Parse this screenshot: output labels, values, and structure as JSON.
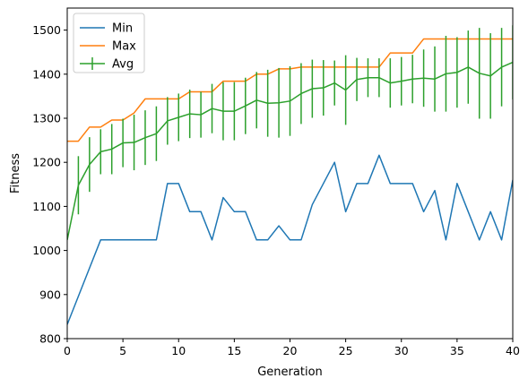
{
  "chart_data": {
    "type": "line",
    "title": "",
    "xlabel": "Generation",
    "ylabel": "Fitness",
    "xlim": [
      0,
      40
    ],
    "ylim": [
      800,
      1550
    ],
    "xticks": [
      0,
      5,
      10,
      15,
      20,
      25,
      30,
      35,
      40
    ],
    "yticks": [
      800,
      900,
      1000,
      1100,
      1200,
      1300,
      1400,
      1500
    ],
    "grid": false,
    "legend_position": "upper-left",
    "x": [
      0,
      1,
      2,
      3,
      4,
      5,
      6,
      7,
      8,
      9,
      10,
      11,
      12,
      13,
      14,
      15,
      16,
      17,
      18,
      19,
      20,
      21,
      22,
      23,
      24,
      25,
      26,
      27,
      28,
      29,
      30,
      31,
      32,
      33,
      34,
      35,
      36,
      37,
      38,
      39,
      40
    ],
    "series": [
      {
        "name": "Min",
        "color": "#1f77b4",
        "values": [
          832,
          896,
          960,
          1024,
          1024,
          1024,
          1024,
          1024,
          1024,
          1152,
          1152,
          1088,
          1088,
          1024,
          1120,
          1088,
          1088,
          1024,
          1024,
          1056,
          1024,
          1024,
          1104,
          1152,
          1200,
          1088,
          1152,
          1152,
          1216,
          1152,
          1152,
          1152,
          1088,
          1136,
          1024,
          1152,
          1088,
          1024,
          1088,
          1024,
          1160
        ]
      },
      {
        "name": "Max",
        "color": "#ff7f0e",
        "values": [
          1248,
          1248,
          1280,
          1280,
          1296,
          1296,
          1312,
          1344,
          1344,
          1344,
          1344,
          1360,
          1360,
          1360,
          1384,
          1384,
          1384,
          1400,
          1400,
          1412,
          1412,
          1416,
          1416,
          1416,
          1416,
          1416,
          1416,
          1416,
          1416,
          1448,
          1448,
          1448,
          1480,
          1480,
          1480,
          1480,
          1480,
          1480,
          1480,
          1480,
          1480
        ]
      },
      {
        "name": "Avg",
        "color": "#2ca02c",
        "values": [
          1024,
          1148,
          1195,
          1224,
          1230,
          1244,
          1245,
          1256,
          1265,
          1294,
          1302,
          1310,
          1308,
          1322,
          1316,
          1316,
          1328,
          1341,
          1334,
          1335,
          1339,
          1356,
          1367,
          1369,
          1380,
          1364,
          1388,
          1392,
          1392,
          1380,
          1384,
          1389,
          1391,
          1389,
          1401,
          1404,
          1416,
          1402,
          1396,
          1416,
          1427
        ],
        "error": [
          0,
          66,
          62,
          51,
          57,
          55,
          63,
          62,
          62,
          54,
          54,
          55,
          52,
          56,
          66,
          66,
          64,
          64,
          76,
          79,
          79,
          69,
          66,
          63,
          51,
          79,
          49,
          44,
          44,
          56,
          55,
          55,
          65,
          74,
          86,
          80,
          83,
          103,
          97,
          89,
          84
        ]
      }
    ]
  }
}
